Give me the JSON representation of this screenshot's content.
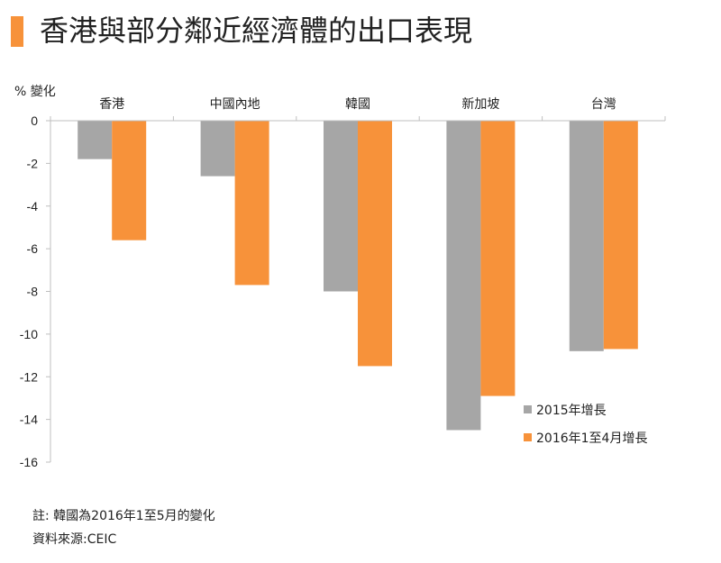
{
  "colors": {
    "accent": "#f7923a",
    "series_2015": "#a6a6a6",
    "series_2016": "#f7923a",
    "axis": "#bfbfbf",
    "text": "#222222"
  },
  "title": "香港與部分鄰近經濟體的出口表現",
  "notes": {
    "footnote": "註: 韓國為2016年1至5月的變化",
    "source": "資料來源:CEIC"
  },
  "chart_data": {
    "type": "bar",
    "title": "香港與部分鄰近經濟體的出口表現",
    "ylabel": "% 變化",
    "xlabel": "",
    "categories": [
      "香港",
      "中國內地",
      "韓國",
      "新加坡",
      "台灣"
    ],
    "series": [
      {
        "name": "2015年增長",
        "values": [
          -1.8,
          -2.6,
          -8.0,
          -14.5,
          -10.8
        ]
      },
      {
        "name": "2016年1至4月增長",
        "values": [
          -5.6,
          -7.7,
          -11.5,
          -12.9,
          -10.7
        ]
      }
    ],
    "ylim": [
      -16,
      0
    ],
    "yticks": [
      0,
      -2,
      -4,
      -6,
      -8,
      -10,
      -12,
      -14,
      -16
    ],
    "category_axis_position": "top",
    "grid": false,
    "legend_position": "bottom-right"
  }
}
